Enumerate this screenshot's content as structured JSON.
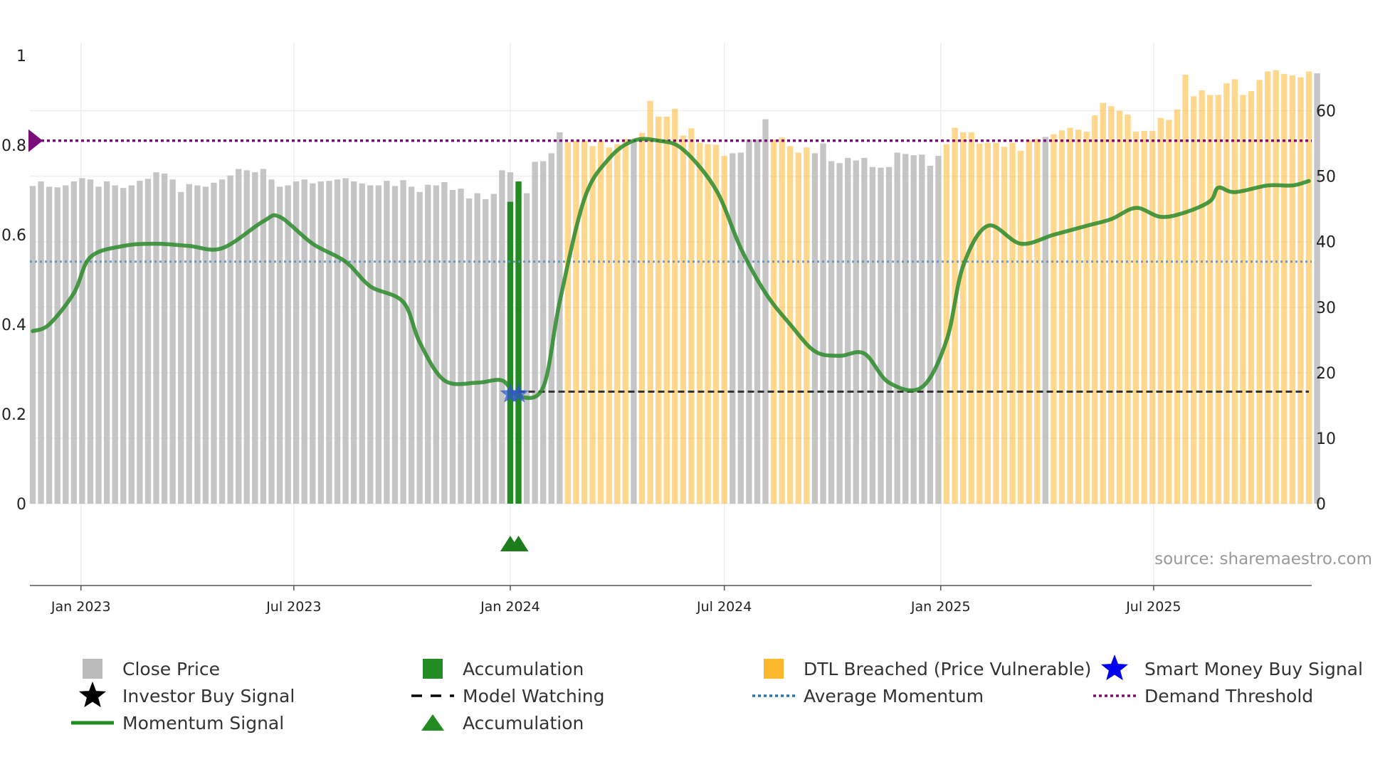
{
  "chart_data": {
    "type": "bar",
    "left_axis": {
      "ticks": [
        "0",
        "0.2",
        "0.4",
        "0.6",
        "0.8",
        "1"
      ],
      "range": [
        0,
        1
      ]
    },
    "right_axis": {
      "ticks": [
        "0",
        "10",
        "20",
        "30",
        "40",
        "50",
        "60"
      ],
      "range": [
        0,
        66
      ]
    },
    "x_axis": {
      "range": [
        "2022-11-21",
        "2025-11-10"
      ],
      "ticks": [
        {
          "label": "Jan 2023",
          "date": "2023-01-01"
        },
        {
          "label": "Jul 2023",
          "date": "2023-07-01"
        },
        {
          "label": "Jan 2024",
          "date": "2024-01-01"
        },
        {
          "label": "Jul 2024",
          "date": "2024-07-01"
        },
        {
          "label": "Jan 2025",
          "date": "2025-01-01"
        },
        {
          "label": "Jul 2025",
          "date": "2025-07-01"
        }
      ]
    },
    "close_price": {
      "start": "2022-11-21",
      "interval_days": 7,
      "values": [
        48.5,
        49.2,
        48.4,
        48.3,
        48.6,
        49.2,
        49.7,
        49.5,
        48.4,
        49.2,
        48.6,
        48.2,
        48.6,
        49.3,
        49.6,
        50.6,
        50.4,
        49.5,
        47.6,
        48.8,
        48.6,
        48.4,
        49.0,
        49.5,
        50.1,
        51.1,
        50.9,
        50.6,
        51.1,
        49.5,
        48.4,
        48.6,
        49.2,
        49.5,
        48.9,
        49.2,
        49.3,
        49.5,
        49.7,
        49.2,
        48.9,
        48.6,
        48.6,
        49.3,
        48.5,
        49.4,
        48.4,
        47.6,
        48.7,
        48.6,
        49.1,
        47.9,
        48.1,
        46.6,
        47.4,
        46.5,
        47.3,
        50.9,
        50.6,
        49.0,
        47.4,
        52.2,
        52.3,
        53.5,
        56.7,
        55.2,
        55.4,
        55.4,
        54.6,
        55.4,
        54.4,
        54.9,
        55.7,
        55.4,
        56.6,
        61.5,
        59.1,
        59.1,
        60.3,
        56.2,
        57.3,
        55.1,
        54.9,
        54.8,
        53.1,
        53.5,
        53.6,
        55.6,
        55.6,
        58.7,
        55.6,
        55.9,
        54.6,
        53.6,
        54.4,
        53.5,
        55.0,
        52.3,
        52.0,
        52.8,
        52.4,
        52.8,
        51.4,
        51.3,
        51.4,
        53.6,
        53.4,
        53.2,
        53.3,
        51.6,
        53.1,
        54.9,
        57.4,
        56.7,
        56.7,
        55.0,
        55.1,
        55.1,
        54.5,
        55.1,
        53.9,
        55.5,
        55.7,
        56.0,
        56.4,
        57.0,
        57.4,
        57.1,
        56.8,
        59.3,
        61.2,
        60.7,
        60.0,
        59.4,
        56.8,
        56.9,
        56.9,
        58.9,
        58.6,
        60.2,
        65.5,
        62.2,
        63.1,
        62.4,
        62.4,
        64.2,
        64.8,
        62.4,
        63.0,
        64.7,
        66.0,
        66.2,
        65.6,
        65.4,
        65.1,
        66.0,
        65.7
      ],
      "color": "#bbbbbb",
      "dtl_breached_color": "#ffb730"
    },
    "dtl_breached_ranges": [
      [
        "2024-02-19",
        "2024-04-08"
      ],
      [
        "2024-04-22",
        "2024-07-01"
      ],
      [
        "2024-08-12",
        "2024-08-26"
      ],
      [
        "2024-09-02",
        "2024-09-09"
      ],
      [
        "2025-01-06",
        "2025-03-24"
      ],
      [
        "2025-04-07",
        "2025-11-10"
      ]
    ],
    "accumulation_bars": [
      {
        "date": "2024-01-01",
        "value": 46.1
      },
      {
        "date": "2024-01-08",
        "value": 49.2
      }
    ],
    "momentum": {
      "dates": [
        "2022-11-21",
        "2022-12-05",
        "2022-12-26",
        "2023-01-09",
        "2023-02-06",
        "2023-03-06",
        "2023-04-03",
        "2023-05-01",
        "2023-06-05",
        "2023-06-19",
        "2023-07-17",
        "2023-08-14",
        "2023-09-04",
        "2023-10-02",
        "2023-10-16",
        "2023-11-06",
        "2023-12-04",
        "2023-12-25",
        "2024-01-08",
        "2024-01-29",
        "2024-02-12",
        "2024-03-04",
        "2024-03-25",
        "2024-04-15",
        "2024-05-06",
        "2024-05-27",
        "2024-06-24",
        "2024-07-15",
        "2024-08-05",
        "2024-08-26",
        "2024-09-16",
        "2024-10-07",
        "2024-10-28",
        "2024-11-18",
        "2024-12-16",
        "2025-01-06",
        "2025-01-20",
        "2025-02-10",
        "2025-03-10",
        "2025-04-07",
        "2025-05-05",
        "2025-05-26",
        "2025-06-16",
        "2025-07-07",
        "2025-07-28",
        "2025-08-18",
        "2025-08-25",
        "2025-09-08",
        "2025-10-06",
        "2025-10-27",
        "2025-11-10"
      ],
      "values": [
        0.385,
        0.4,
        0.47,
        0.55,
        0.575,
        0.58,
        0.575,
        0.57,
        0.63,
        0.64,
        0.58,
        0.54,
        0.485,
        0.45,
        0.36,
        0.275,
        0.27,
        0.275,
        0.24,
        0.26,
        0.45,
        0.68,
        0.77,
        0.81,
        0.81,
        0.79,
        0.7,
        0.57,
        0.47,
        0.4,
        0.34,
        0.33,
        0.335,
        0.27,
        0.26,
        0.365,
        0.53,
        0.62,
        0.58,
        0.6,
        0.62,
        0.635,
        0.66,
        0.64,
        0.65,
        0.675,
        0.705,
        0.695,
        0.71,
        0.71,
        0.72
      ],
      "color": "#2a8a2a",
      "highlight_color": "#6e9a10"
    },
    "model_watching": {
      "value": 0.25,
      "start": "2024-01-08",
      "end": "2025-11-10"
    },
    "average_momentum": 0.54,
    "demand_threshold": 0.81,
    "smart_money_buy_signals": [
      {
        "date": "2024-01-01",
        "value": 0.245
      },
      {
        "date": "2024-01-08",
        "value": 0.245
      }
    ],
    "accumulation_markers": [
      "2024-01-01",
      "2024-01-08"
    ],
    "source_text": "source: sharemaestro.com",
    "legend": [
      {
        "label": "Close Price",
        "symbol": "square",
        "color": "#bbbbbb"
      },
      {
        "label": "Accumulation",
        "symbol": "square",
        "color": "#228b22"
      },
      {
        "label": "DTL Breached (Price Vulnerable)",
        "symbol": "square",
        "color": "#ffb730"
      },
      {
        "label": "Smart Money Buy Signal",
        "symbol": "star",
        "color": "#0000ee"
      },
      {
        "label": "Investor Buy Signal",
        "symbol": "star",
        "color": "#000000"
      },
      {
        "label": "Model Watching",
        "symbol": "dash",
        "color": "#000000"
      },
      {
        "label": "Average Momentum",
        "symbol": "dot",
        "color": "#1f77b4"
      },
      {
        "label": "Demand Threshold",
        "symbol": "dot",
        "color": "#7b0d7b"
      },
      {
        "label": "Momentum Signal",
        "symbol": "line",
        "color": "#228b22"
      },
      {
        "label": "Accumulation",
        "symbol": "triangle",
        "color": "#228b22"
      }
    ]
  }
}
